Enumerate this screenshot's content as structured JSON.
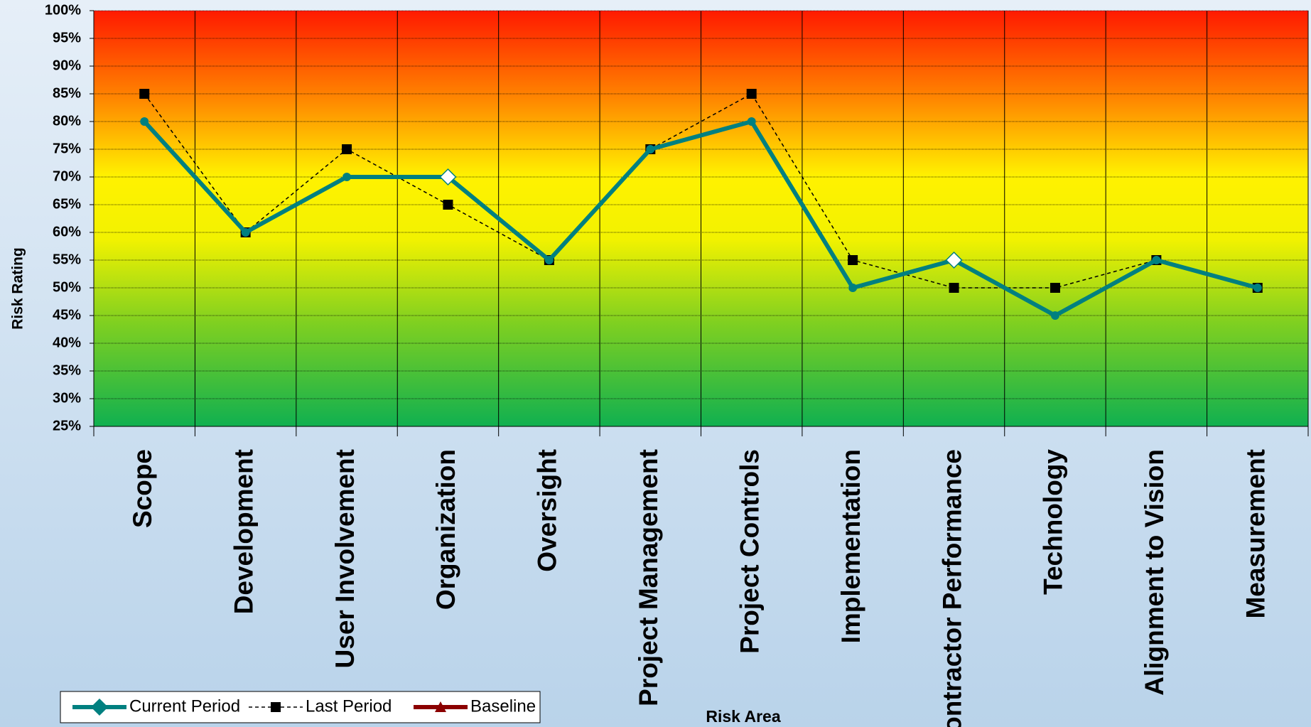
{
  "chart_data": {
    "type": "line",
    "x_label": "Risk Area",
    "y_label": "Risk Rating",
    "categories": [
      "Scope",
      "Development",
      "User Involvement",
      "Organization",
      "Oversight",
      "Project Management",
      "Project Controls",
      "Implementation",
      "Contractor Performance",
      "Technology",
      "Alignment to Vision",
      "Measurement"
    ],
    "series": [
      {
        "name": "Current Period",
        "color": "#008080",
        "marker": "diamond",
        "dash": "solid",
        "values": [
          80,
          60,
          70,
          70,
          55,
          75,
          80,
          50,
          55,
          45,
          55,
          50
        ]
      },
      {
        "name": "Last Period",
        "color": "#000000",
        "marker": "square",
        "dash": "dashed",
        "values": [
          85,
          60,
          75,
          65,
          55,
          75,
          85,
          55,
          50,
          50,
          55,
          50
        ]
      },
      {
        "name": "Baseline",
        "color": "#8b0000",
        "marker": "triangle",
        "dash": "solid",
        "values": [
          null,
          null,
          null,
          null,
          null,
          null,
          null,
          null,
          null,
          null,
          null,
          null
        ]
      }
    ],
    "ylim": [
      25,
      100
    ],
    "yticks": [
      {
        "value": 25,
        "label": "25%"
      },
      {
        "value": 30,
        "label": "30%"
      },
      {
        "value": 35,
        "label": "35%"
      },
      {
        "value": 40,
        "label": "40%"
      },
      {
        "value": 45,
        "label": "45%"
      },
      {
        "value": 50,
        "label": "50%"
      },
      {
        "value": 55,
        "label": "55%"
      },
      {
        "value": 60,
        "label": "60%"
      },
      {
        "value": 65,
        "label": "65%"
      },
      {
        "value": 70,
        "label": "70%"
      },
      {
        "value": 75,
        "label": "75%"
      },
      {
        "value": 80,
        "label": "80%"
      },
      {
        "value": 85,
        "label": "85%"
      },
      {
        "value": 90,
        "label": "90%"
      },
      {
        "value": 95,
        "label": "95%"
      },
      {
        "value": 100,
        "label": "100%"
      }
    ],
    "grid": true,
    "legend": "bottom-left"
  }
}
